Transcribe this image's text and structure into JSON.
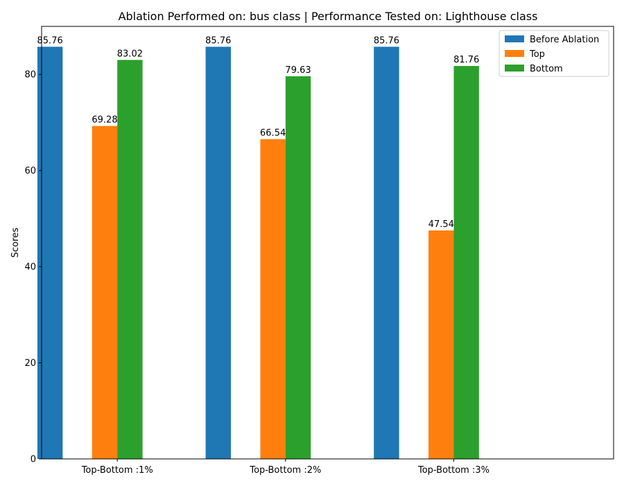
{
  "chart_data": {
    "type": "bar",
    "title": "Ablation Performed on: bus class | Performance Tested on: Lighthouse class",
    "xlabel": "",
    "ylabel": "Scores",
    "categories": [
      "Top-Bottom :1%",
      "Top-Bottom :2%",
      "Top-Bottom :3%"
    ],
    "series": [
      {
        "name": "Before Ablation",
        "color": "#1f77b4",
        "values": [
          85.76,
          85.76,
          85.76
        ]
      },
      {
        "name": "Top",
        "color": "#ff7f0e",
        "values": [
          69.28,
          66.54,
          47.54
        ]
      },
      {
        "name": "Bottom",
        "color": "#2ca02c",
        "values": [
          83.02,
          79.63,
          81.76
        ]
      }
    ],
    "ylim": [
      0,
      90
    ],
    "yticks": [
      0,
      20,
      40,
      60,
      80
    ],
    "legend": "top-right",
    "grid": false,
    "data_labels": true
  }
}
